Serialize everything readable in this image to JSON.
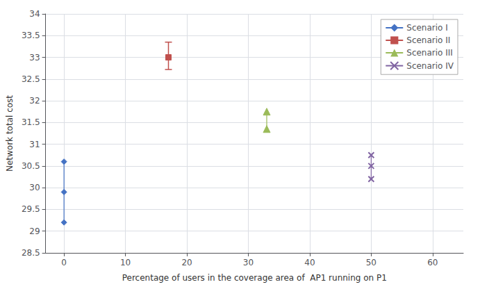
{
  "chart_data": {
    "type": "line",
    "xlabel": "Percentage of users in the coverage area of  AP1 running on P1",
    "ylabel": "Network total cost",
    "series": [
      {
        "name": "Scenario I",
        "color": "#4472C4",
        "marker": "diamond",
        "x": [
          0,
          0,
          0
        ],
        "values": [
          30.6,
          29.9,
          29.2
        ]
      },
      {
        "name": "Scenario II",
        "color": "#C0504D",
        "marker": "square",
        "x": [
          17
        ],
        "values": [
          33.0
        ],
        "error_low": [
          0.28
        ],
        "error_high": [
          0.35
        ]
      },
      {
        "name": "Scenario III",
        "color": "#9BBB59",
        "marker": "triangle",
        "x": [
          33,
          33
        ],
        "values": [
          31.75,
          31.35
        ]
      },
      {
        "name": "Scenario IV",
        "color": "#8064A2",
        "marker": "x",
        "x": [
          50,
          50,
          50
        ],
        "values": [
          30.75,
          30.5,
          30.2
        ]
      }
    ],
    "xlim": [
      -3,
      65
    ],
    "ylim": [
      28.5,
      34
    ],
    "xticks": [
      0,
      10,
      20,
      30,
      40,
      50,
      60
    ],
    "yticks": [
      28.5,
      29,
      29.5,
      30,
      30.5,
      31,
      31.5,
      32,
      32.5,
      33,
      33.5,
      34
    ],
    "grid": true,
    "legend": "upper right"
  }
}
